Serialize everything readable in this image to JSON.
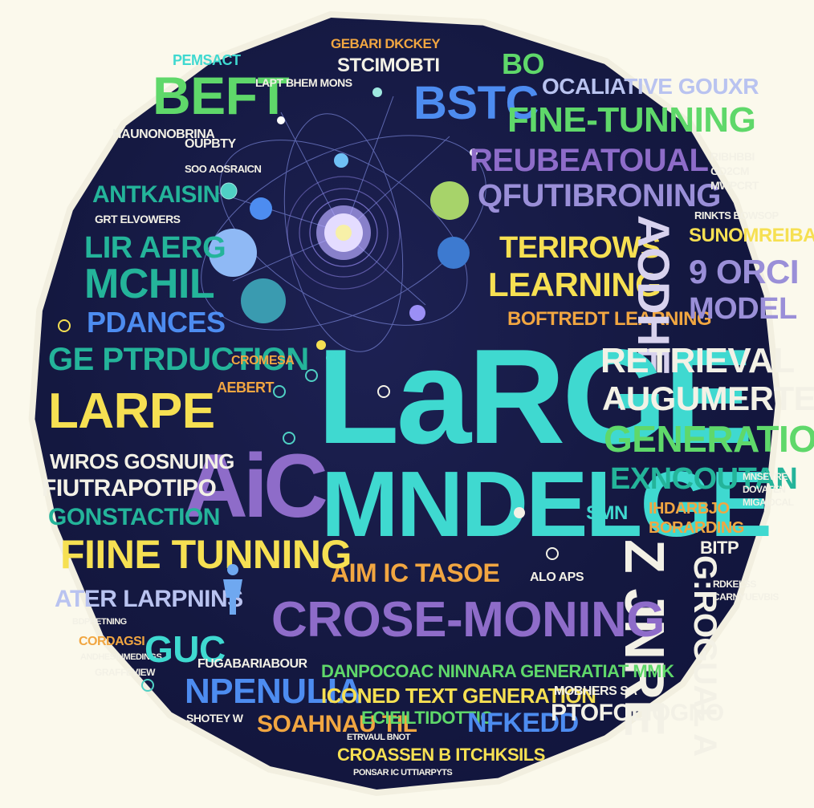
{
  "palette": {
    "background": "#fbf9ec",
    "cloud": "#141840",
    "cyan": "#3fd9d0",
    "teal": "#24b49a",
    "green": "#5fd86a",
    "yellow": "#f6e052",
    "orange": "#f1a641",
    "purple": "#8e6cc9",
    "lavender": "#9a8fd8",
    "white": "#f3f1e6",
    "blue": "#4d8cf0"
  },
  "words": {
    "beft": "BEFT",
    "fine_tunning_top": "FINE-TUNNING",
    "reubeatoual": "REUBEATOUAL",
    "qfutibroning": "QFUTIBRONING",
    "teriirows": "TERIROWS",
    "learning": "LEARNING",
    "boftredt_learning": "BOFTREDT LEARNING",
    "lir_aerg": "LIR AERG",
    "mchil": "MCHIL",
    "pdances": "PDANCES",
    "ge_ptrduction": "GE PTRDUCTION",
    "cromesa": "CROMESA",
    "larpe": "LARPE",
    "aebert": "AEBERT",
    "large": "LaRGE",
    "mndelge": "MNDELGE",
    "ai": "AiC",
    "retrieval": "RETRIEVAL",
    "augumerted": "AUGUMERTED",
    "generation": "GENERATION",
    "exncoutan": "EXNCOUTAN",
    "wiros_gosnuing": "WIROS GOSNUING",
    "fiutrapotipo": "FIUTRAPOTIPO",
    "gonstaction": "GONSTACTION",
    "fiine_tunning": "FIINE TUNNING",
    "aim_ic_tasoe": "AIM IC TASOE",
    "ater_larpnins": "ATER LARPNINS",
    "crose_moning": "CROSE-MONING",
    "smn": "SMN",
    "ihdarbjo": "IHDARBJO",
    "borarding": "BORARDING",
    "bitp": "BITP",
    "dampocoac": "DANPOCOAC NINNARA GENERATIAT MMK",
    "iconed_text_generation": "ICONED TEXT GENERATION",
    "nfenulia": "NPENULIA",
    "soahnau_til": "SOAHNAU TIL",
    "ecieltid": "ECIEILTIDOTTIC",
    "nfkedd": "NFKEDD",
    "ptofoliogno": "PTOFOLIOGNO",
    "crossen": "CROASSEN B ITCHKSILS",
    "gnue": "GNUE",
    "fugabariaour": "FUGABARIABOUR",
    "sunomreiba": "SUNOMREIBA",
    "gorci": "9 ORCI",
    "model": "MODEL",
    "oclaitive_gouxr": "OCALIATIVE GOUXR",
    "bstc": "BSTC",
    "bo": "BO",
    "pemsact": "PEMSACT",
    "gebari_dkckey": "GEBARI DKCKEY",
    "stcimobti": "STCIMOBTI",
    "antkaisin": "ANTKAISIN",
    "grt_elvowers": "GRT ELVOWERS",
    "haunonobrina": "HAUNONOBRINA",
    "aodhe": "AODHE",
    "zjnre": "Z JNRE",
    "gcrogual": "G:ROGUAL A",
    "laptbhemmons": "LAPT BHEM MONS",
    "oupbty": "OUPBTY",
    "sok_aosraicn": "SOO AOSRAICN",
    "small_a": "ALO APS",
    "mirror_c": "MOBHERS SA",
    "shortw": "SHOTEY W",
    "mirroring": "MIRRORING",
    "fine_tiny": "ETRVAUL BNOT",
    "bottom_small": "PONSAR IC UTTIARPYTS",
    "osal": "GUC",
    "gouuma": "CORDAGSI",
    "graffeviw": "GRAFFEVIEW",
    "bdp": "BDPHETNING",
    "aiohi": "ANDHESINMEDINGS",
    "rdklss": "RDKELSS",
    "dovaten": "DOVATEN",
    "mnsevrei": "MNSEVRE",
    "mniaidcal": "MIGAIDCAL",
    "mwpcrt": "MWPCRT",
    "gdzcm": "GD2CM",
    "ribhbbi": "RIBHBBI",
    "rinkts": "RINKTS BOWSOP",
    "carnyuevbis": "CARNYUEVBIS"
  }
}
